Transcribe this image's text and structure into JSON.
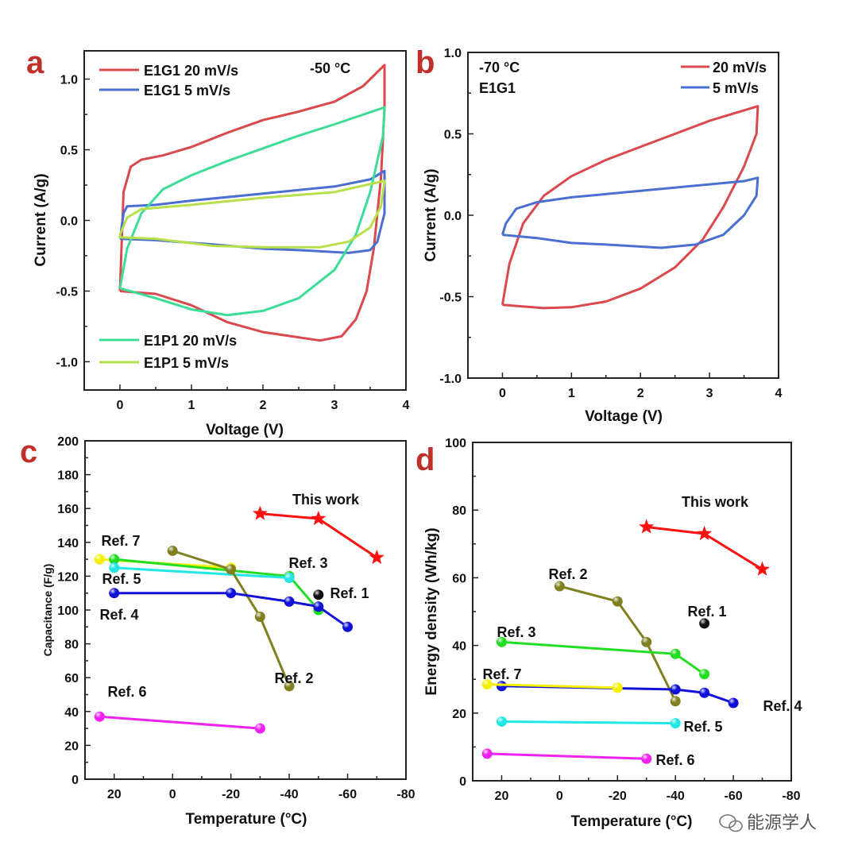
{
  "watermark": "能源学人",
  "chart_data": [
    {
      "panel": "a",
      "type": "line",
      "xlabel": "Voltage (V)",
      "ylabel": "Current (A/g)",
      "xlim": [
        -0.5,
        4
      ],
      "ylim": [
        -1.2,
        1.2
      ],
      "xticks": [
        0,
        1,
        2,
        3,
        4
      ],
      "yticks": [
        -1.0,
        -0.5,
        0.0,
        0.5,
        1.0
      ],
      "annotation": "-50 °C",
      "series": [
        {
          "name": "E1G1  20 mV/s",
          "color": "#d9494d",
          "points": [
            [
              0,
              -0.5
            ],
            [
              0.05,
              0.2
            ],
            [
              0.15,
              0.38
            ],
            [
              0.3,
              0.43
            ],
            [
              0.6,
              0.46
            ],
            [
              1,
              0.52
            ],
            [
              1.5,
              0.62
            ],
            [
              2,
              0.71
            ],
            [
              2.5,
              0.77
            ],
            [
              3,
              0.84
            ],
            [
              3.4,
              0.95
            ],
            [
              3.7,
              1.1
            ],
            [
              3.7,
              0.8
            ],
            [
              3.65,
              0.3
            ],
            [
              3.55,
              -0.2
            ],
            [
              3.45,
              -0.5
            ],
            [
              3.3,
              -0.7
            ],
            [
              3.1,
              -0.82
            ],
            [
              2.8,
              -0.85
            ],
            [
              2.4,
              -0.82
            ],
            [
              2,
              -0.79
            ],
            [
              1.5,
              -0.72
            ],
            [
              1,
              -0.6
            ],
            [
              0.5,
              -0.52
            ],
            [
              0,
              -0.5
            ]
          ]
        },
        {
          "name": "E1G1  5 mV/s",
          "color": "#4a6fd0",
          "points": [
            [
              0,
              -0.13
            ],
            [
              0.05,
              0.05
            ],
            [
              0.1,
              0.1
            ],
            [
              0.5,
              0.11
            ],
            [
              1,
              0.14
            ],
            [
              2,
              0.19
            ],
            [
              3,
              0.24
            ],
            [
              3.5,
              0.29
            ],
            [
              3.7,
              0.35
            ],
            [
              3.7,
              0.05
            ],
            [
              3.6,
              -0.15
            ],
            [
              3.5,
              -0.21
            ],
            [
              3.2,
              -0.23
            ],
            [
              2.5,
              -0.21
            ],
            [
              2,
              -0.2
            ],
            [
              1.3,
              -0.17
            ],
            [
              0.5,
              -0.14
            ],
            [
              0,
              -0.13
            ]
          ]
        },
        {
          "name": "E1P1  20 mV/s",
          "color": "#3ddc97",
          "points": [
            [
              0,
              -0.48
            ],
            [
              0.1,
              -0.2
            ],
            [
              0.3,
              0.05
            ],
            [
              0.6,
              0.22
            ],
            [
              1,
              0.32
            ],
            [
              1.5,
              0.42
            ],
            [
              2,
              0.51
            ],
            [
              2.5,
              0.6
            ],
            [
              3,
              0.68
            ],
            [
              3.7,
              0.8
            ],
            [
              3.68,
              0.6
            ],
            [
              3.5,
              0.2
            ],
            [
              3.3,
              -0.1
            ],
            [
              3,
              -0.35
            ],
            [
              2.5,
              -0.55
            ],
            [
              2,
              -0.64
            ],
            [
              1.5,
              -0.67
            ],
            [
              1,
              -0.63
            ],
            [
              0.5,
              -0.55
            ],
            [
              0,
              -0.48
            ]
          ]
        },
        {
          "name": "E1P1  5 mV/s",
          "color": "#b8e04a",
          "points": [
            [
              0,
              -0.1
            ],
            [
              0.1,
              0.02
            ],
            [
              0.3,
              0.08
            ],
            [
              1,
              0.11
            ],
            [
              2,
              0.16
            ],
            [
              3,
              0.2
            ],
            [
              3.7,
              0.28
            ],
            [
              3.65,
              0.1
            ],
            [
              3.5,
              -0.05
            ],
            [
              3.2,
              -0.15
            ],
            [
              2.8,
              -0.19
            ],
            [
              2,
              -0.19
            ],
            [
              1.3,
              -0.18
            ],
            [
              0.5,
              -0.13
            ],
            [
              0,
              -0.12
            ],
            [
              0,
              -0.1
            ]
          ]
        }
      ]
    },
    {
      "panel": "b",
      "type": "line",
      "xlabel": "Voltage (V)",
      "ylabel": "Current (A/g)",
      "xlim": [
        -0.5,
        4
      ],
      "ylim": [
        -1.0,
        1.0
      ],
      "xticks": [
        0,
        1,
        2,
        3,
        4
      ],
      "yticks": [
        -1.0,
        -0.5,
        0.0,
        0.5,
        1.0
      ],
      "annotation": "-70 °C",
      "annotation2": "E1G1",
      "series": [
        {
          "name": "20 mV/s",
          "color": "#d9494d",
          "points": [
            [
              0,
              -0.55
            ],
            [
              0.1,
              -0.3
            ],
            [
              0.3,
              -0.05
            ],
            [
              0.6,
              0.12
            ],
            [
              1,
              0.24
            ],
            [
              1.5,
              0.34
            ],
            [
              2,
              0.42
            ],
            [
              2.5,
              0.5
            ],
            [
              3,
              0.58
            ],
            [
              3.7,
              0.67
            ],
            [
              3.68,
              0.5
            ],
            [
              3.5,
              0.3
            ],
            [
              3.2,
              0.05
            ],
            [
              2.9,
              -0.15
            ],
            [
              2.5,
              -0.32
            ],
            [
              2,
              -0.45
            ],
            [
              1.5,
              -0.53
            ],
            [
              1,
              -0.565
            ],
            [
              0.6,
              -0.57
            ],
            [
              0,
              -0.55
            ]
          ]
        },
        {
          "name": "5 mV/s",
          "color": "#4a6fd0",
          "points": [
            [
              0,
              -0.12
            ],
            [
              0.05,
              -0.05
            ],
            [
              0.2,
              0.04
            ],
            [
              0.5,
              0.08
            ],
            [
              1,
              0.11
            ],
            [
              2,
              0.15
            ],
            [
              3,
              0.19
            ],
            [
              3.5,
              0.21
            ],
            [
              3.7,
              0.23
            ],
            [
              3.68,
              0.12
            ],
            [
              3.5,
              0
            ],
            [
              3.2,
              -0.12
            ],
            [
              2.8,
              -0.18
            ],
            [
              2.3,
              -0.2
            ],
            [
              1.5,
              -0.18
            ],
            [
              1,
              -0.17
            ],
            [
              0.5,
              -0.14
            ],
            [
              0,
              -0.12
            ]
          ]
        }
      ]
    },
    {
      "panel": "c",
      "type": "line",
      "xlabel": "Temperature (°C)",
      "ylabel": "Capacitance (F/g)",
      "xlim": [
        30,
        -80
      ],
      "ylim": [
        0,
        200
      ],
      "xticks": [
        20,
        0,
        -20,
        -40,
        -60,
        -80
      ],
      "yticks": [
        0,
        20,
        40,
        60,
        80,
        100,
        120,
        140,
        160,
        180,
        200
      ],
      "series": [
        {
          "name": "This work",
          "color": "#ff1010",
          "marker": "star",
          "points": [
            [
              -30,
              157
            ],
            [
              -50,
              154
            ],
            [
              -70,
              131
            ]
          ]
        },
        {
          "name": "Ref. 7",
          "color": "#f5f000",
          "points": [
            [
              25,
              130
            ],
            [
              -20,
              125
            ]
          ]
        },
        {
          "name": "Ref. 3",
          "color": "#22dd22",
          "points": [
            [
              20,
              130
            ],
            [
              -40,
              120
            ],
            [
              -50,
              100
            ]
          ]
        },
        {
          "name": "Ref. 5",
          "color": "#22e6e6",
          "points": [
            [
              20,
              125
            ],
            [
              -40,
              119
            ]
          ]
        },
        {
          "name": "Ref. 2",
          "color": "#808020",
          "points": [
            [
              0,
              135
            ],
            [
              -20,
              124
            ],
            [
              -30,
              96
            ],
            [
              -40,
              55
            ]
          ]
        },
        {
          "name": "Ref. 4",
          "color": "#1010d8",
          "points": [
            [
              20,
              110
            ],
            [
              -20,
              110
            ],
            [
              -40,
              105
            ],
            [
              -50,
              102
            ],
            [
              -60,
              90
            ]
          ]
        },
        {
          "name": "Ref. 1",
          "color": "#111111",
          "points": [
            [
              -50,
              109
            ]
          ]
        },
        {
          "name": "Ref. 6",
          "color": "#ee22ee",
          "points": [
            [
              25,
              37
            ],
            [
              -30,
              30
            ]
          ]
        }
      ]
    },
    {
      "panel": "d",
      "type": "line",
      "xlabel": "Temperature (°C)",
      "ylabel": "Energy density (Wh/kg)",
      "xlim": [
        30,
        -80
      ],
      "ylim": [
        0,
        100
      ],
      "xticks": [
        20,
        0,
        -20,
        -40,
        -60,
        -80
      ],
      "yticks": [
        0,
        20,
        40,
        60,
        80,
        100
      ],
      "series": [
        {
          "name": "This work",
          "color": "#ff1010",
          "marker": "star",
          "points": [
            [
              -30,
              75
            ],
            [
              -50,
              73
            ],
            [
              -70,
              62.5
            ]
          ]
        },
        {
          "name": "Ref. 2",
          "color": "#808020",
          "points": [
            [
              0,
              57.5
            ],
            [
              -20,
              53
            ],
            [
              -30,
              41
            ],
            [
              -40,
              23.5
            ]
          ]
        },
        {
          "name": "Ref. 1",
          "color": "#111111",
          "points": [
            [
              -50,
              46.5
            ]
          ]
        },
        {
          "name": "Ref. 3",
          "color": "#22dd22",
          "points": [
            [
              20,
              41
            ],
            [
              -40,
              37.5
            ],
            [
              -50,
              31.5
            ]
          ]
        },
        {
          "name": "Ref. 4",
          "color": "#1010d8",
          "points": [
            [
              20,
              28
            ],
            [
              -40,
              27
            ],
            [
              -50,
              26
            ],
            [
              -60,
              23
            ]
          ]
        },
        {
          "name": "Ref. 7",
          "color": "#f5f000",
          "points": [
            [
              25,
              28.5
            ],
            [
              -20,
              27.5
            ]
          ]
        },
        {
          "name": "Ref. 5",
          "color": "#22e6e6",
          "points": [
            [
              20,
              17.5
            ],
            [
              -40,
              17
            ]
          ]
        },
        {
          "name": "Ref. 6",
          "color": "#ee22ee",
          "points": [
            [
              25,
              8
            ],
            [
              -30,
              6.5
            ]
          ]
        }
      ]
    }
  ]
}
